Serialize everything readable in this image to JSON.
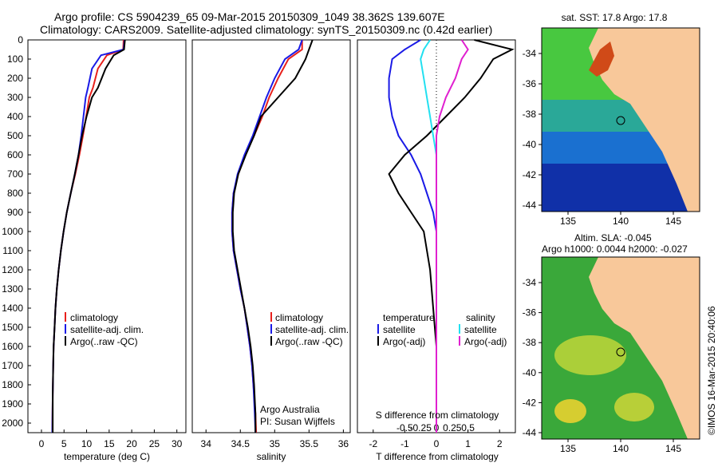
{
  "header": {
    "line1": "Argo profile: CS 5904239_65 09-Mar-2015 20150309_1049 38.362S 139.607E",
    "line2": "Climatology: CARS2009. Satellite-adjusted climatology: synTS_20150309.nc (0.42d earlier)"
  },
  "colors": {
    "climatology": "#e8201c",
    "satellite": "#1a1ae6",
    "argo": "#000000",
    "sat_s": "#22e0f0",
    "argo_adj_s": "#e020d0",
    "land": "#f8c89a"
  },
  "depth_axis": {
    "ticks": [
      "0",
      "100",
      "200",
      "300",
      "400",
      "500",
      "600",
      "700",
      "800",
      "900",
      "1000",
      "1100",
      "1200",
      "1300",
      "1400",
      "1500",
      "1600",
      "1700",
      "1800",
      "1900",
      "2000"
    ]
  },
  "panels": {
    "temperature": {
      "xlabel": "temperature (deg C)",
      "ticks": [
        "0",
        "5",
        "10",
        "15",
        "20",
        "25",
        "30"
      ],
      "legend": [
        "climatology",
        "satellite-adj. clim.",
        "Argo(..raw -QC)"
      ]
    },
    "salinity": {
      "xlabel": "salinity",
      "ticks": [
        "34",
        "34.5",
        "35",
        "35.5",
        "36"
      ],
      "legend": [
        "climatology",
        "satellite-adj. clim.",
        "Argo(..raw -QC)"
      ],
      "note1": "Argo Australia",
      "note2": "PI: Susan Wijffels"
    },
    "difference": {
      "xlabel": "T difference from climatology",
      "top_label": "S difference from climatology",
      "t_ticks": [
        "-2",
        "-1",
        "0",
        "1",
        "2"
      ],
      "s_ticks": [
        "-0.5",
        "-0.25",
        "0",
        "0.25",
        "0.5"
      ],
      "legend_t_head": "temperature",
      "legend_s_head": "salinity",
      "legend_t": [
        "satellite",
        "Argo(-adj)"
      ],
      "legend_s": [
        "satellite",
        "Argo(-adj)"
      ]
    }
  },
  "maps": {
    "sst_title": "sat. SST: 17.8 Argo: 17.8",
    "sla_title1": "Altim. SLA: -0.045",
    "sla_title2": "Argo h1000: 0.0044 h2000: -0.027",
    "lat_ticks": [
      "-34",
      "-36",
      "-38",
      "-40",
      "-42",
      "-44"
    ],
    "lon_ticks": [
      "135",
      "140",
      "145"
    ],
    "side_text": "©IMOS 16-Mar-2015 20:40:06"
  },
  "chart_data": [
    {
      "type": "line",
      "title": "",
      "xlabel": "temperature (deg C)",
      "ylabel": "",
      "xlim": [
        -3,
        32
      ],
      "ylim": [
        2050,
        0
      ],
      "series": [
        {
          "name": "climatology",
          "x": [
            18.2,
            18.1,
            14.5,
            12.5,
            11.4,
            10.6,
            9.9,
            9.2,
            8.4,
            7.5,
            6.5,
            5.6,
            4.9,
            4.3,
            3.8,
            3.4,
            3.1,
            2.9,
            2.7,
            2.6,
            2.5,
            2.4
          ],
          "y": [
            0,
            50,
            80,
            150,
            250,
            300,
            400,
            500,
            600,
            700,
            800,
            900,
            1000,
            1100,
            1200,
            1300,
            1400,
            1500,
            1600,
            1700,
            1850,
            2050
          ]
        },
        {
          "name": "satellite-adj. clim.",
          "x": [
            18.4,
            18.2,
            13.2,
            11.2,
            10.3,
            9.8,
            9.3,
            8.8,
            8.2,
            7.4,
            6.5,
            5.6,
            4.9,
            4.3,
            3.8,
            3.4,
            3.1,
            2.9,
            2.7,
            2.6,
            2.5,
            2.4
          ],
          "y": [
            0,
            50,
            80,
            150,
            250,
            300,
            400,
            500,
            600,
            700,
            800,
            900,
            1000,
            1100,
            1200,
            1300,
            1400,
            1500,
            1600,
            1700,
            1850,
            2050
          ]
        },
        {
          "name": "Argo(..raw -QC)",
          "x": [
            18.5,
            18.3,
            16.0,
            14.2,
            12.5,
            11.2,
            10.0,
            9.0,
            8.2,
            7.4,
            6.5,
            5.6,
            4.9,
            4.3,
            3.8,
            3.4,
            3.1,
            2.9,
            2.7,
            2.6,
            2.5,
            2.5
          ],
          "y": [
            0,
            50,
            80,
            150,
            250,
            300,
            400,
            500,
            600,
            700,
            800,
            900,
            1000,
            1100,
            1200,
            1300,
            1400,
            1500,
            1600,
            1700,
            1850,
            2050
          ]
        }
      ]
    },
    {
      "type": "line",
      "title": "",
      "xlabel": "salinity",
      "ylabel": "",
      "xlim": [
        33.8,
        36.1
      ],
      "ylim": [
        2050,
        0
      ],
      "series": [
        {
          "name": "climatology",
          "x": [
            35.4,
            35.4,
            35.2,
            35.05,
            34.92,
            34.82,
            34.7,
            34.57,
            34.47,
            34.4,
            34.38,
            34.38,
            34.4,
            34.45,
            34.5,
            34.56,
            34.6,
            34.64,
            34.67,
            34.69,
            34.72,
            34.73
          ],
          "y": [
            0,
            50,
            100,
            200,
            300,
            400,
            500,
            600,
            700,
            800,
            900,
            1000,
            1100,
            1200,
            1300,
            1400,
            1500,
            1600,
            1700,
            1800,
            1950,
            2050
          ]
        },
        {
          "name": "satellite-adj. clim.",
          "x": [
            35.4,
            35.35,
            35.15,
            35.0,
            34.88,
            34.78,
            34.68,
            34.56,
            34.46,
            34.4,
            34.38,
            34.38,
            34.4,
            34.45,
            34.5,
            34.56,
            34.6,
            34.64,
            34.67,
            34.69,
            34.71,
            34.72
          ],
          "y": [
            0,
            50,
            100,
            200,
            300,
            400,
            500,
            600,
            700,
            800,
            900,
            1000,
            1100,
            1200,
            1300,
            1400,
            1500,
            1600,
            1700,
            1800,
            1950,
            2050
          ]
        },
        {
          "name": "Argo(..raw -QC)",
          "x": [
            35.55,
            35.5,
            35.45,
            35.3,
            35.05,
            34.8,
            34.7,
            34.58,
            34.47,
            34.41,
            34.39,
            34.39,
            34.41,
            34.46,
            34.51,
            34.56,
            34.61,
            34.65,
            34.68,
            34.7,
            34.72,
            34.72
          ],
          "y": [
            0,
            50,
            100,
            200,
            300,
            400,
            500,
            600,
            700,
            800,
            900,
            1000,
            1100,
            1200,
            1300,
            1400,
            1500,
            1600,
            1700,
            1800,
            1950,
            2050
          ]
        }
      ]
    },
    {
      "type": "line",
      "title": "",
      "xlabel": "T difference from climatology",
      "ylabel": "",
      "xlim": [
        -2.5,
        2.5
      ],
      "ylim": [
        2050,
        0
      ],
      "series": [
        {
          "name": "temperature satellite",
          "x": [
            -0.5,
            -1.0,
            -1.4,
            -1.5,
            -1.5,
            -1.4,
            -1.2,
            -0.8,
            -0.5,
            -0.3,
            -0.1,
            0.0,
            0.0,
            0.0,
            0.0,
            0.0,
            0.0,
            0.0,
            0.0
          ],
          "y": [
            0,
            50,
            100,
            200,
            300,
            400,
            500,
            600,
            700,
            800,
            900,
            1000,
            1200,
            1400,
            1600,
            1700,
            1800,
            1950,
            2050
          ]
        },
        {
          "name": "temperature Argo(-adj)",
          "x": [
            1.2,
            2.4,
            1.8,
            1.4,
            0.9,
            0.3,
            -0.3,
            -1.0,
            -1.5,
            -1.2,
            -0.8,
            -0.4,
            -0.2,
            -0.1,
            0.0,
            0.0,
            0.0,
            0.0,
            0.0
          ],
          "y": [
            0,
            50,
            100,
            200,
            300,
            400,
            500,
            600,
            700,
            800,
            900,
            1000,
            1200,
            1400,
            1600,
            1700,
            1800,
            1950,
            2050
          ]
        },
        {
          "name": "salinity satellite",
          "x": [
            -0.1,
            -0.2,
            -0.25,
            -0.2,
            -0.15,
            -0.1,
            -0.05,
            0.0,
            0.0,
            0.0,
            0.0,
            0.0,
            0.0,
            0.0,
            0.0,
            0.0,
            0.0,
            0.0,
            0.0
          ],
          "y": [
            0,
            50,
            100,
            200,
            300,
            400,
            500,
            600,
            700,
            800,
            900,
            1000,
            1200,
            1400,
            1600,
            1700,
            1800,
            1950,
            2050
          ]
        },
        {
          "name": "salinity Argo(-adj)",
          "x": [
            0.4,
            0.5,
            0.4,
            0.3,
            0.15,
            0.05,
            0.0,
            0.0,
            0.0,
            0.0,
            0.0,
            0.0,
            0.0,
            0.0,
            0.0,
            0.0,
            0.0,
            0.0,
            0.0
          ],
          "y": [
            0,
            50,
            100,
            200,
            300,
            400,
            500,
            600,
            700,
            800,
            900,
            1000,
            1200,
            1400,
            1600,
            1700,
            1800,
            1950,
            2050
          ]
        }
      ]
    }
  ]
}
